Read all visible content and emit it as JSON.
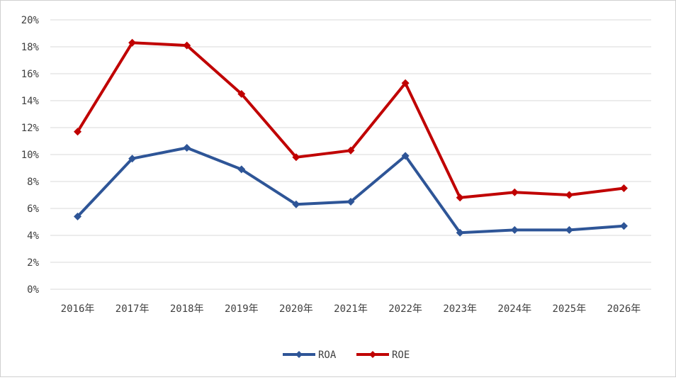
{
  "chart_data": {
    "type": "line",
    "title": "",
    "xlabel": "",
    "ylabel": "",
    "categories": [
      "2016年",
      "2017年",
      "2018年",
      "2019年",
      "2020年",
      "2021年",
      "2022年",
      "2023年",
      "2024年",
      "2025年",
      "2026年"
    ],
    "ylim": [
      0,
      20
    ],
    "y_ticks": [
      "0%",
      "2%",
      "4%",
      "6%",
      "8%",
      "10%",
      "12%",
      "14%",
      "16%",
      "18%",
      "20%"
    ],
    "grid": "horizontal",
    "legend_position": "bottom",
    "series": [
      {
        "name": "ROA",
        "color": "#2E5597",
        "values": [
          5.4,
          9.7,
          10.5,
          8.9,
          6.3,
          6.5,
          9.9,
          4.2,
          4.4,
          4.4,
          4.7
        ]
      },
      {
        "name": "ROE",
        "color": "#C00000",
        "values": [
          11.7,
          18.3,
          18.1,
          14.5,
          9.8,
          10.3,
          15.3,
          6.8,
          7.2,
          7.0,
          7.5
        ]
      }
    ]
  }
}
